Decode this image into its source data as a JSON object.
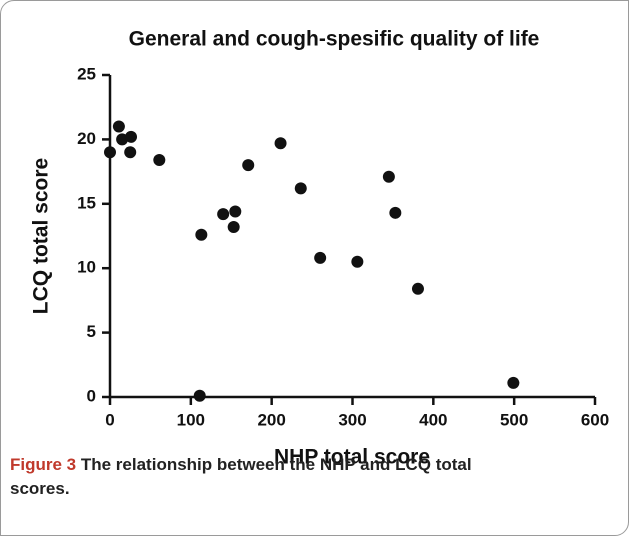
{
  "chart_data": {
    "type": "scatter",
    "title": "General and cough-spesific quality of life",
    "x_label": "NHP total score",
    "y_label": "LCQ total score",
    "x": [
      0,
      11,
      15,
      26,
      25,
      61,
      113,
      140,
      155,
      153,
      171,
      211,
      236,
      260,
      306,
      345,
      353,
      381,
      499,
      111
    ],
    "values": [
      19,
      21,
      20,
      20.2,
      19,
      18.4,
      12.6,
      14.2,
      14.4,
      13.2,
      18,
      19.7,
      16.2,
      10.8,
      10.5,
      17.1,
      14.3,
      8.4,
      1.1,
      0.1
    ],
    "color": "#111111",
    "xlim": [
      0,
      600
    ],
    "xticks": [
      0,
      100,
      200,
      300,
      400,
      500,
      600
    ],
    "ylim": [
      0,
      25
    ],
    "yticks": [
      0,
      5,
      10,
      15,
      20,
      25
    ]
  },
  "caption": {
    "label": "Figure 3",
    "text": "The relationship between the NHP and LCQ total scores."
  }
}
